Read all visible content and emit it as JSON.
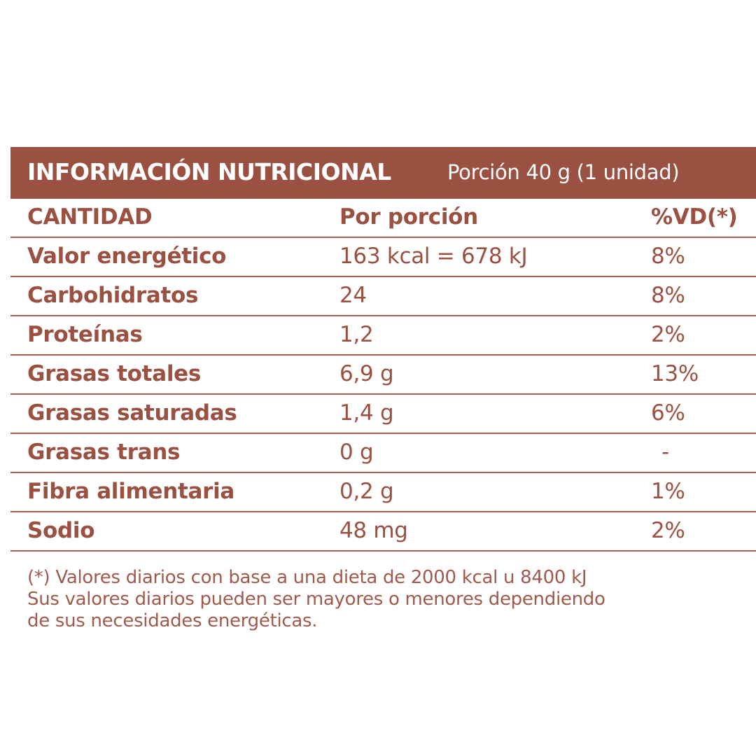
{
  "header": {
    "title": "INFORMACIÓN NUTRICIONAL",
    "serving": "Porción 40 g (1 unidad)"
  },
  "columns": {
    "name": "CANTIDAD",
    "portion": "Por porción",
    "vd": "%VD(*)"
  },
  "rows": [
    {
      "name": "Valor energético",
      "portion": "163 kcal = 678 kJ",
      "vd": "8%"
    },
    {
      "name": "Carbohidratos",
      "portion": "24",
      "vd": "8%"
    },
    {
      "name": "Proteínas",
      "portion": "1,2",
      "vd": "2%"
    },
    {
      "name": "Grasas totales",
      "portion": "6,9 g",
      "vd": "13%"
    },
    {
      "name": "Grasas saturadas",
      "portion": "1,4 g",
      "vd": "6%"
    },
    {
      "name": "Grasas trans",
      "portion": "0 g",
      "vd": "-"
    },
    {
      "name": "Fibra alimentaria",
      "portion": "0,2 g",
      "vd": "1%"
    },
    {
      "name": "Sodio",
      "portion": "48 mg",
      "vd": "2%"
    }
  ],
  "footnote": {
    "line1": "(*) Valores diarios con base a una dieta de 2000 kcal u 8400 kJ",
    "line2": "Sus valores diarios pueden ser mayores o menores dependiendo",
    "line3": "de sus necesidades energéticas."
  },
  "colors": {
    "header_bg": "#9b5142",
    "text": "#9b5142",
    "rule": "#a7604f"
  }
}
